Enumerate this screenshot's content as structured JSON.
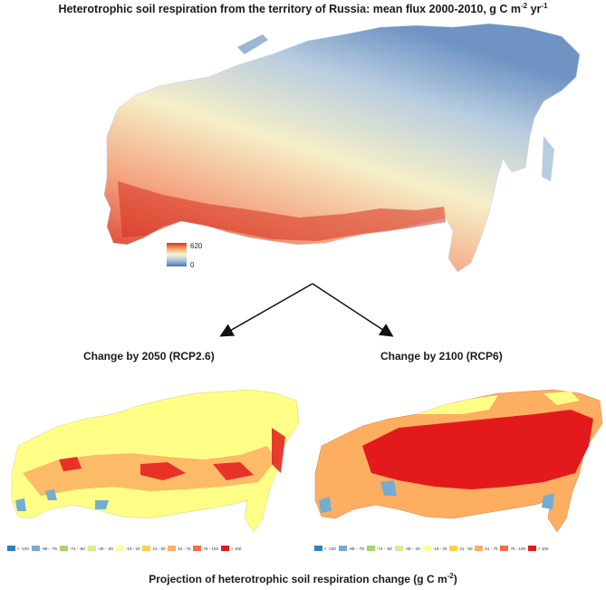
{
  "header": {
    "title": "Heterotrophic soil respiration from the territory of Russia: mean flux 2000-2010, g C m",
    "title_sup1": "-2",
    "title_mid": " yr",
    "title_sup2": "-1"
  },
  "colorbar": {
    "max_label": "620",
    "min_label": "0",
    "colors": [
      "#d7301f",
      "#f7a86a",
      "#f6f6d4",
      "#a8c0d8",
      "#4d74b8"
    ]
  },
  "panels": {
    "left": {
      "title": "Change by 2050 (RCP2.6)"
    },
    "right": {
      "title": "Change by 2100 (RCP6)"
    }
  },
  "legend": {
    "items": [
      {
        "label": "< -100",
        "color": "#2b83ba"
      },
      {
        "label": "-99 - -75",
        "color": "#74add1"
      },
      {
        "label": "-74 - -50",
        "color": "#a6d96a"
      },
      {
        "label": "-49 - -20",
        "color": "#d9ef8b"
      },
      {
        "label": "-19 - 20",
        "color": "#ffff99"
      },
      {
        "label": "21 - 50",
        "color": "#fdd049"
      },
      {
        "label": "51 - 75",
        "color": "#fdae61"
      },
      {
        "label": "75 - 100",
        "color": "#f46d43"
      },
      {
        "label": "> 100",
        "color": "#e31a1c"
      }
    ]
  },
  "footer": {
    "title": "Projection of heterotrophic soil respiration change (g C m",
    "title_sup": "-2",
    "title_end": ")"
  }
}
